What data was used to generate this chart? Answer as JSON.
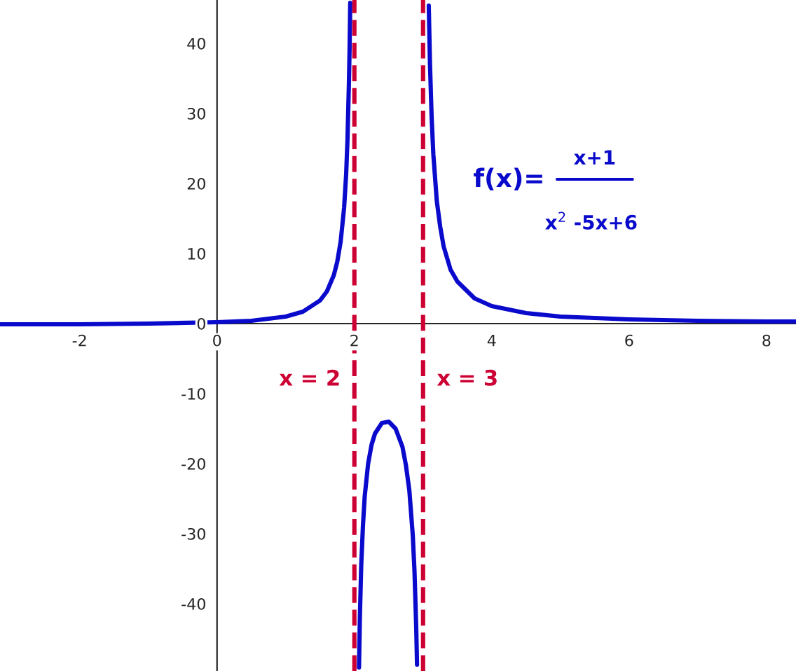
{
  "chart_data": {
    "type": "line",
    "xlim": [
      -3.16,
      8.43
    ],
    "ylim": [
      -49.6,
      46.2
    ],
    "xticks": [
      -2,
      0,
      2,
      4,
      6,
      8
    ],
    "yticks": [
      -40,
      -30,
      -20,
      -10,
      0,
      10,
      20,
      30,
      40
    ],
    "grid": false,
    "marker": "none",
    "line_style": "solid",
    "series": [
      {
        "color": "#0a0acc",
        "x": [
          -3.16,
          -3,
          -2.5,
          -2,
          -1,
          0,
          0.5,
          1,
          1.25,
          1.5,
          1.6,
          1.7,
          1.75,
          1.8,
          1.85,
          1.88,
          1.9,
          1.92,
          1.93,
          1.9395
        ],
        "values": [
          -0.1,
          -0.1,
          -0.1,
          -0.1,
          0,
          0.2,
          0.4,
          1,
          1.7,
          3.3,
          4.6,
          6.9,
          8.8,
          11.7,
          16.5,
          21.3,
          26.4,
          34.2,
          39.1,
          45.8
        ]
      },
      {
        "color": "#0a0acc",
        "x": [
          2.067,
          2.08,
          2.1,
          2.125,
          2.15,
          2.2,
          2.25,
          2.3,
          2.4,
          2.5,
          2.6,
          2.7,
          2.75,
          2.8,
          2.85,
          2.875,
          2.9,
          2.91,
          2.912
        ],
        "values": [
          -49.1,
          -41.9,
          -34.4,
          -28.8,
          -24.7,
          -20,
          -17.3,
          -15.7,
          -14.2,
          -14,
          -15,
          -17.6,
          -20.2,
          -23.8,
          -30.2,
          -35.3,
          -43.3,
          -47.7,
          -48.7
        ]
      },
      {
        "color": "#0a0acc",
        "x": [
          3.083,
          3.1,
          3.125,
          3.15,
          3.2,
          3.25,
          3.3,
          3.4,
          3.5,
          3.75,
          4,
          4.5,
          5,
          6,
          7,
          8,
          8.43
        ],
        "values": [
          45.4,
          37.3,
          29.4,
          24.1,
          17.5,
          13.8,
          11,
          7.7,
          6,
          3.6,
          2.5,
          1.5,
          1,
          0.6,
          0.4,
          0.3,
          0.3
        ]
      }
    ],
    "ref_lines": [
      {
        "axis": "x",
        "value": 2,
        "label": "x = 2",
        "color": "#cc0033",
        "line_style": "dashed"
      },
      {
        "axis": "x",
        "value": 3,
        "label": "x = 3",
        "color": "#cc0033",
        "line_style": "dashed"
      }
    ],
    "annotations": [
      "f(x)=",
      "x+1",
      "x$^{2}$ -5x+6"
    ]
  }
}
